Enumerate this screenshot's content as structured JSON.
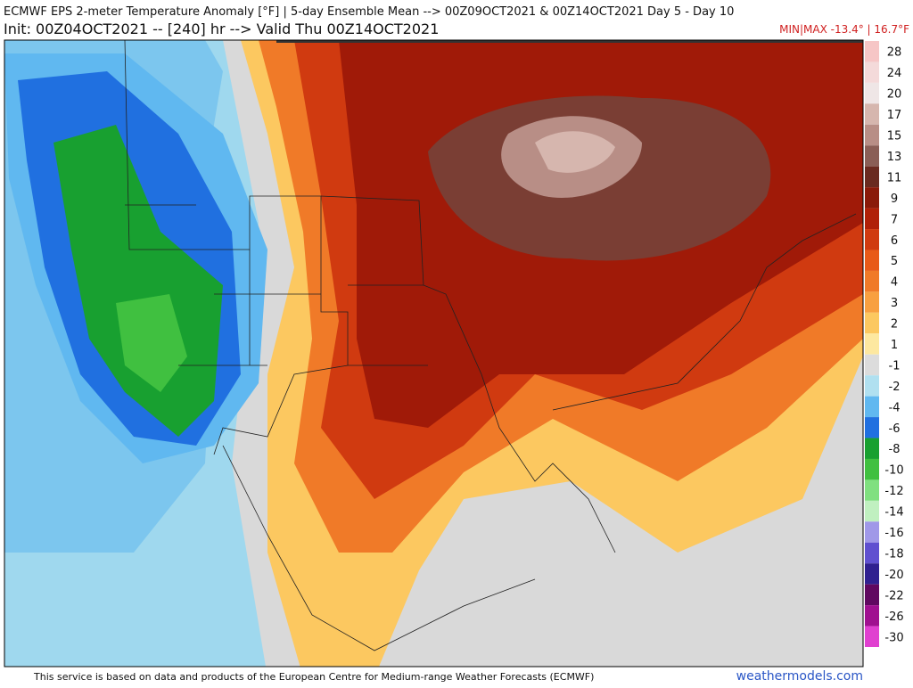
{
  "header": {
    "title": "ECMWF EPS 2-meter Temperature Anomaly [°F] | 5-day Ensemble Mean --> 00Z09OCT2021 & 00Z14OCT2021   Day 5 - Day 10",
    "subtitle": "Init: 00Z04OCT2021 -- [240] hr --> Valid Thu 00Z14OCT2021",
    "minmax": "MIN|MAX -13.4° | 16.7°F"
  },
  "colorbar": {
    "labels": [
      "28",
      "24",
      "20",
      "17",
      "15",
      "13",
      "11",
      "9",
      "7",
      "6",
      "5",
      "4",
      "3",
      "2",
      "1",
      "-1",
      "-2",
      "-4",
      "-6",
      "-8",
      "-10",
      "-12",
      "-14",
      "-16",
      "-18",
      "-20",
      "-22",
      "-26",
      "-30"
    ],
    "colors": [
      "#f6c6c6",
      "#f4dada",
      "#efe6e6",
      "#d6b6ae",
      "#b88e86",
      "#8a5e56",
      "#6a2a20",
      "#8a1a0a",
      "#b02008",
      "#d03a10",
      "#e85a18",
      "#f07a28",
      "#f8a040",
      "#fcc860",
      "#fde8a0",
      "#dcdcdc",
      "#b0e0f0",
      "#60b8f0",
      "#2070e0",
      "#18a030",
      "#40c040",
      "#80e080",
      "#c0f0c0",
      "#a098e8",
      "#6050d0",
      "#302090",
      "#600860",
      "#a01090",
      "#e040d0"
    ]
  },
  "footer": {
    "credit": "This service is based on data and products of the European Centre for Medium-range Weather Forecasts (ECMWF)",
    "site": "weathermodels.com"
  }
}
